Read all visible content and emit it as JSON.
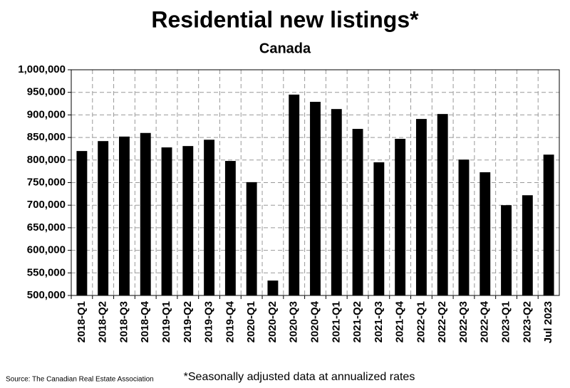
{
  "chart_data": {
    "type": "bar",
    "title": "Residential new listings*",
    "subtitle": "Canada",
    "categories": [
      "2018-Q1",
      "2018-Q2",
      "2018-Q3",
      "2018-Q4",
      "2019-Q1",
      "2019-Q2",
      "2019-Q3",
      "2019-Q4",
      "2020-Q1",
      "2020-Q2",
      "2020-Q3",
      "2020-Q4",
      "2021-Q1",
      "2021-Q2",
      "2021-Q3",
      "2021-Q4",
      "2022-Q1",
      "2022-Q2",
      "2022-Q3",
      "2022-Q4",
      "2023-Q1",
      "2023-Q2",
      "Jul 2023"
    ],
    "values": [
      820000,
      842000,
      852000,
      860000,
      828000,
      831000,
      845000,
      798000,
      751000,
      533000,
      945000,
      929000,
      913000,
      869000,
      795000,
      847000,
      891000,
      902000,
      801000,
      773000,
      700000,
      722000,
      812000
    ],
    "color": "#000000",
    "ylim": [
      500000,
      1000000
    ],
    "yticks": [
      {
        "value": 500000,
        "label": "500,000"
      },
      {
        "value": 550000,
        "label": "550,000"
      },
      {
        "value": 600000,
        "label": "600,000"
      },
      {
        "value": 650000,
        "label": "650,000"
      },
      {
        "value": 700000,
        "label": "700,000"
      },
      {
        "value": 750000,
        "label": "750,000"
      },
      {
        "value": 800000,
        "label": "800,000"
      },
      {
        "value": 850000,
        "label": "850,000"
      },
      {
        "value": 900000,
        "label": "900,000"
      },
      {
        "value": 950000,
        "label": "950,000"
      },
      {
        "value": 1000000,
        "label": "1,000,000"
      }
    ],
    "grid": true,
    "footnote": "*Seasonally adjusted data at annualized rates",
    "source": "Source: The Canadian Real Estate Association"
  }
}
